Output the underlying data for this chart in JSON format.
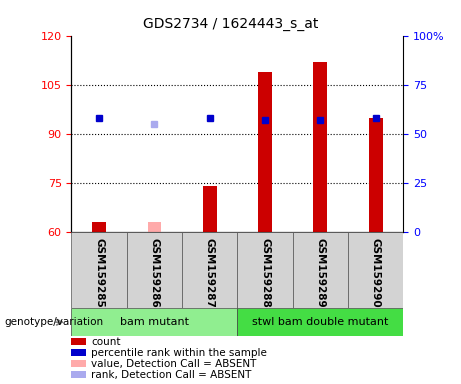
{
  "title": "GDS2734 / 1624443_s_at",
  "samples": [
    "GSM159285",
    "GSM159286",
    "GSM159287",
    "GSM159288",
    "GSM159289",
    "GSM159290"
  ],
  "groups": [
    {
      "label": "bam mutant",
      "color": "#90ee90",
      "count": 3
    },
    {
      "label": "stwl bam double mutant",
      "color": "#44dd44",
      "count": 3
    }
  ],
  "count_values": [
    63,
    63,
    74,
    109,
    112,
    95
  ],
  "count_absent": [
    false,
    true,
    false,
    false,
    false,
    false
  ],
  "rank_values": [
    60,
    57,
    60,
    58,
    58,
    59
  ],
  "rank_absent": [
    false,
    true,
    false,
    false,
    false,
    false
  ],
  "ylim_left": [
    60,
    120
  ],
  "ylim_right": [
    0,
    100
  ],
  "yticks_left": [
    60,
    75,
    90,
    105,
    120
  ],
  "yticks_right": [
    0,
    25,
    50,
    75,
    100
  ],
  "ytick_labels_left": [
    "60",
    "75",
    "90",
    "105",
    "120"
  ],
  "ytick_labels_right": [
    "0",
    "25",
    "50",
    "75",
    "100%"
  ],
  "count_color": "#cc0000",
  "count_absent_color": "#ffaaaa",
  "rank_color": "#0000cc",
  "rank_absent_color": "#aaaaee",
  "genotype_label": "genotype/variation",
  "legend_items": [
    {
      "label": "count",
      "color": "#cc0000"
    },
    {
      "label": "percentile rank within the sample",
      "color": "#0000cc"
    },
    {
      "label": "value, Detection Call = ABSENT",
      "color": "#ffaaaa"
    },
    {
      "label": "rank, Detection Call = ABSENT",
      "color": "#aaaaee"
    }
  ]
}
